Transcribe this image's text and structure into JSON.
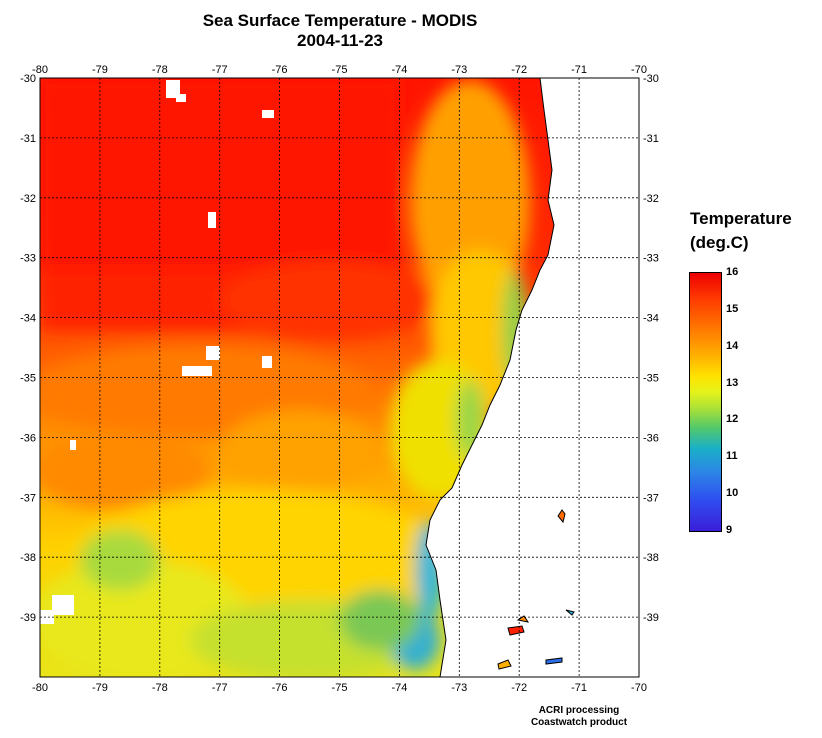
{
  "title": {
    "line1": "Sea Surface Temperature - MODIS",
    "line2": "2004-11-23"
  },
  "map": {
    "lon_ticks": [
      "-80",
      "-79",
      "-78",
      "-77",
      "-76",
      "-75",
      "-74",
      "-73",
      "-72",
      "-71",
      "-70"
    ],
    "lat_ticks": [
      "-30",
      "-31",
      "-32",
      "-33",
      "-34",
      "-35",
      "-36",
      "-37",
      "-38",
      "-39"
    ],
    "colors": {
      "warm": "#ff1a00",
      "warm_orange": "#ff6a00",
      "orange": "#ffa000",
      "yellow": "#f2e200",
      "green": "#8fd048",
      "cyan": "#2ab8d8",
      "blue": "#2a6ee8",
      "land": "#ffffff",
      "grid": "#000000"
    }
  },
  "legend": {
    "title_line1": "Temperature",
    "title_line2": "(deg.C)",
    "labels": [
      "16",
      "15",
      "14",
      "13",
      "12",
      "11",
      "10",
      "9"
    ],
    "min": 9,
    "max": 16
  },
  "credits": {
    "line1": "ACRI processing",
    "line2": "Coastwatch product"
  }
}
